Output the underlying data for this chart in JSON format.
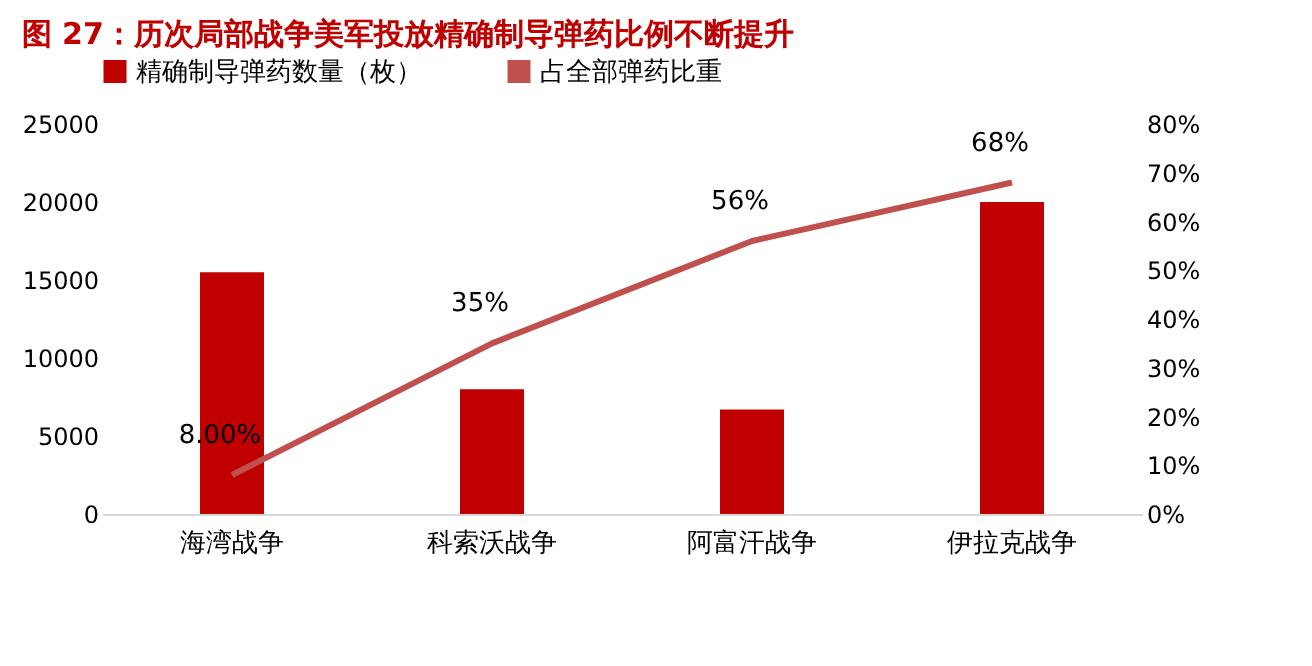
{
  "chart_data": {
    "type": "bar",
    "title": "图 27：历次局部战争美军投放精确制导弹药比例不断提升",
    "categories": [
      "海湾战争",
      "科索沃战争",
      "阿富汗战争",
      "伊拉克战争"
    ],
    "series": [
      {
        "name": "精确制导弹药数量（枚）",
        "color": "#c00000",
        "values": [
          15500,
          8000,
          6700,
          20000
        ]
      },
      {
        "name": "占全部弹药比重",
        "type": "line",
        "axis": "y2",
        "color": "#c0504d",
        "values": [
          8,
          35,
          56,
          68
        ],
        "value_labels": [
          "8.00%",
          "35%",
          "56%",
          "68%"
        ]
      }
    ],
    "ylim": [
      0,
      25000
    ],
    "yticks": [
      0,
      5000,
      10000,
      15000,
      20000,
      25000
    ],
    "y2lim": [
      0,
      80
    ],
    "y2ticks": [
      {
        "value": 0,
        "label": "0%"
      },
      {
        "value": 10,
        "label": "10%"
      },
      {
        "value": 20,
        "label": "20%"
      },
      {
        "value": 30,
        "label": "30%"
      },
      {
        "value": 40,
        "label": "40%"
      },
      {
        "value": 50,
        "label": "50%"
      },
      {
        "value": 60,
        "label": "60%"
      },
      {
        "value": 70,
        "label": "70%"
      },
      {
        "value": 80,
        "label": "80%"
      }
    ],
    "grid": false,
    "legend": "top"
  }
}
